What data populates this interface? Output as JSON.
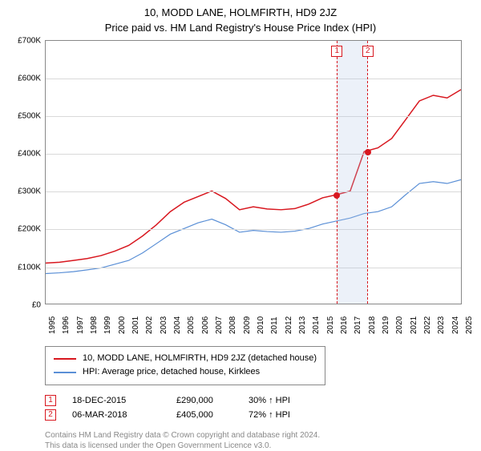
{
  "title": "10, MODD LANE, HOLMFIRTH, HD9 2JZ",
  "subtitle": "Price paid vs. HM Land Registry's House Price Index (HPI)",
  "chart": {
    "type": "line",
    "background_color": "#ffffff",
    "grid_color": "#d9d9d9",
    "axis_color": "#888888",
    "xlim": [
      1995,
      2025
    ],
    "ylim": [
      0,
      700000
    ],
    "ytick_step": 100000,
    "yticks": [
      {
        "v": 0,
        "label": "£0"
      },
      {
        "v": 100000,
        "label": "£100K"
      },
      {
        "v": 200000,
        "label": "£200K"
      },
      {
        "v": 300000,
        "label": "£300K"
      },
      {
        "v": 400000,
        "label": "£400K"
      },
      {
        "v": 500000,
        "label": "£500K"
      },
      {
        "v": 600000,
        "label": "£600K"
      },
      {
        "v": 700000,
        "label": "£700K"
      }
    ],
    "xticks": [
      1995,
      1996,
      1997,
      1998,
      1999,
      2000,
      2001,
      2002,
      2003,
      2004,
      2005,
      2006,
      2007,
      2008,
      2009,
      2010,
      2011,
      2012,
      2013,
      2014,
      2015,
      2016,
      2017,
      2018,
      2019,
      2020,
      2021,
      2022,
      2023,
      2024,
      2025
    ],
    "series": [
      {
        "id": "property",
        "label": "10, MODD LANE, HOLMFIRTH, HD9 2JZ (detached house)",
        "color": "#d8171f",
        "line_width": 1.5,
        "years": [
          1995,
          1996,
          1997,
          1998,
          1999,
          2000,
          2001,
          2002,
          2003,
          2004,
          2005,
          2006,
          2007,
          2008,
          2009,
          2010,
          2011,
          2012,
          2013,
          2014,
          2015,
          2016,
          2017,
          2018,
          2019,
          2020,
          2021,
          2022,
          2023,
          2024,
          2025
        ],
        "values": [
          108000,
          110000,
          115000,
          120000,
          128000,
          140000,
          155000,
          180000,
          210000,
          245000,
          270000,
          285000,
          300000,
          280000,
          250000,
          258000,
          252000,
          250000,
          253000,
          265000,
          282000,
          290000,
          300000,
          405000,
          415000,
          440000,
          490000,
          540000,
          555000,
          548000,
          570000
        ]
      },
      {
        "id": "hpi",
        "label": "HPI: Average price, detached house, Kirklees",
        "color": "#5a8fd6",
        "line_width": 1.2,
        "years": [
          1995,
          1996,
          1997,
          1998,
          1999,
          2000,
          2001,
          2002,
          2003,
          2004,
          2005,
          2006,
          2007,
          2008,
          2009,
          2010,
          2011,
          2012,
          2013,
          2014,
          2015,
          2016,
          2017,
          2018,
          2019,
          2020,
          2021,
          2022,
          2023,
          2024,
          2025
        ],
        "values": [
          80000,
          82000,
          85000,
          90000,
          95000,
          105000,
          115000,
          135000,
          160000,
          185000,
          200000,
          215000,
          225000,
          210000,
          190000,
          195000,
          192000,
          190000,
          193000,
          200000,
          212000,
          220000,
          228000,
          240000,
          245000,
          258000,
          290000,
          320000,
          325000,
          320000,
          330000
        ]
      }
    ],
    "sale_band_color": "rgba(180,200,230,0.25)",
    "sales": [
      {
        "n": "1",
        "year_frac": 2015.96,
        "date": "18-DEC-2015",
        "price": "£290,000",
        "delta": "30% ↑ HPI",
        "marker_color": "#d8171f",
        "value": 290000
      },
      {
        "n": "2",
        "year_frac": 2018.18,
        "date": "06-MAR-2018",
        "price": "£405,000",
        "delta": "72% ↑ HPI",
        "marker_color": "#d8171f",
        "value": 405000
      }
    ]
  },
  "legend_border_color": "#888888",
  "footer_line1": "Contains HM Land Registry data © Crown copyright and database right 2024.",
  "footer_line2": "This data is licensed under the Open Government Licence v3.0.",
  "footer_color": "#888888"
}
